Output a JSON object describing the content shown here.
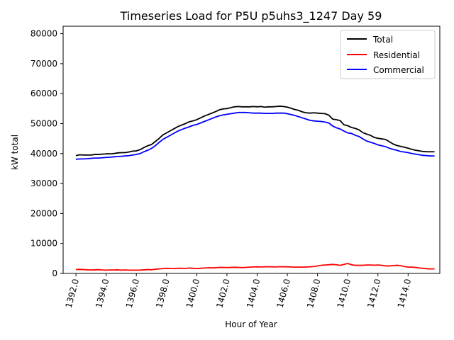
{
  "chart_data": {
    "type": "line",
    "title": "Timeseries Load for P5U p5uhs3_1247  Day 59",
    "xlabel": "Hour of Year",
    "ylabel": "kW total",
    "xlim": [
      1391.15,
      1416.1
    ],
    "ylim": [
      0,
      82500
    ],
    "x_ticks": [
      1392,
      1394,
      1396,
      1398,
      1400,
      1402,
      1404,
      1406,
      1408,
      1410,
      1412,
      1414
    ],
    "x_tick_labels": [
      "1392.0",
      "1394.0",
      "1396.0",
      "1398.0",
      "1400.0",
      "1402.0",
      "1404.0",
      "1406.0",
      "1408.0",
      "1410.0",
      "1412.0",
      "1414.0"
    ],
    "y_ticks": [
      0,
      10000,
      20000,
      30000,
      40000,
      50000,
      60000,
      70000,
      80000
    ],
    "y_tick_labels": [
      "0",
      "10000",
      "20000",
      "30000",
      "40000",
      "50000",
      "60000",
      "70000",
      "80000"
    ],
    "grid": false,
    "legend_position": "top-right",
    "x": [
      1392.0,
      1392.25,
      1392.5,
      1392.75,
      1393.0,
      1393.25,
      1393.5,
      1393.75,
      1394.0,
      1394.25,
      1394.5,
      1394.75,
      1395.0,
      1395.25,
      1395.5,
      1395.75,
      1396.0,
      1396.25,
      1396.5,
      1396.75,
      1397.0,
      1397.25,
      1397.5,
      1397.75,
      1398.0,
      1398.25,
      1398.5,
      1398.75,
      1399.0,
      1399.25,
      1399.5,
      1399.75,
      1400.0,
      1400.25,
      1400.5,
      1400.75,
      1401.0,
      1401.25,
      1401.5,
      1401.75,
      1402.0,
      1402.25,
      1402.5,
      1402.75,
      1403.0,
      1403.25,
      1403.5,
      1403.75,
      1404.0,
      1404.25,
      1404.5,
      1404.75,
      1405.0,
      1405.25,
      1405.5,
      1405.75,
      1406.0,
      1406.25,
      1406.5,
      1406.75,
      1407.0,
      1407.25,
      1407.5,
      1407.75,
      1408.0,
      1408.25,
      1408.5,
      1408.75,
      1409.0,
      1409.25,
      1409.5,
      1409.75,
      1410.0,
      1410.25,
      1410.5,
      1410.75,
      1411.0,
      1411.25,
      1411.5,
      1411.75,
      1412.0,
      1412.25,
      1412.5,
      1412.75,
      1413.0,
      1413.25,
      1413.5,
      1413.75,
      1414.0,
      1414.25,
      1414.5,
      1414.75,
      1415.0,
      1415.25,
      1415.5,
      1415.75
    ],
    "series": [
      {
        "name": "Total",
        "color": "#000000",
        "values": [
          39300,
          39600,
          39500,
          39500,
          39500,
          39700,
          39700,
          39800,
          39900,
          39900,
          40000,
          40200,
          40300,
          40300,
          40500,
          40800,
          40900,
          41300,
          42000,
          42600,
          43000,
          44000,
          45000,
          46200,
          46900,
          47600,
          48300,
          49000,
          49500,
          50000,
          50600,
          50900,
          51300,
          51900,
          52500,
          53000,
          53500,
          54000,
          54600,
          54900,
          55000,
          55300,
          55600,
          55700,
          55600,
          55600,
          55600,
          55700,
          55600,
          55700,
          55500,
          55600,
          55600,
          55700,
          55800,
          55700,
          55500,
          55100,
          54700,
          54400,
          53900,
          53600,
          53500,
          53600,
          53500,
          53400,
          53300,
          52800,
          51500,
          51300,
          51000,
          49600,
          49300,
          48700,
          48400,
          47900,
          47000,
          46500,
          46100,
          45400,
          45100,
          44900,
          44700,
          44000,
          43200,
          42700,
          42400,
          42100,
          41800,
          41400,
          41100,
          40900,
          40700,
          40600,
          40600,
          40600
        ],
        "legend_label": "Total"
      },
      {
        "name": "Residential",
        "color": "#ff0000",
        "values": [
          1300,
          1350,
          1300,
          1200,
          1150,
          1200,
          1250,
          1150,
          1100,
          1150,
          1150,
          1200,
          1100,
          1150,
          1100,
          1100,
          1100,
          1100,
          1200,
          1300,
          1200,
          1400,
          1500,
          1600,
          1700,
          1650,
          1600,
          1700,
          1700,
          1650,
          1800,
          1700,
          1600,
          1700,
          1800,
          1900,
          1850,
          1900,
          2000,
          2000,
          1950,
          2000,
          2050,
          2000,
          1950,
          2000,
          2100,
          2150,
          2200,
          2150,
          2200,
          2250,
          2200,
          2150,
          2250,
          2200,
          2200,
          2150,
          2100,
          2100,
          2100,
          2150,
          2200,
          2300,
          2500,
          2700,
          2800,
          2900,
          3000,
          2900,
          2700,
          3000,
          3300,
          2900,
          2700,
          2700,
          2700,
          2800,
          2800,
          2750,
          2800,
          2700,
          2500,
          2500,
          2600,
          2700,
          2600,
          2300,
          2100,
          2100,
          2000,
          1800,
          1700,
          1550,
          1500,
          1500
        ],
        "legend_label": "Residential"
      },
      {
        "name": "Commercial",
        "color": "#0000ff",
        "values": [
          38100,
          38200,
          38200,
          38300,
          38400,
          38500,
          38500,
          38600,
          38700,
          38800,
          38900,
          39000,
          39100,
          39200,
          39300,
          39500,
          39700,
          40000,
          40600,
          41100,
          41700,
          42600,
          43700,
          44700,
          45400,
          46100,
          46800,
          47500,
          48000,
          48500,
          48900,
          49400,
          49700,
          50200,
          50700,
          51200,
          51700,
          52200,
          52600,
          52900,
          53100,
          53300,
          53500,
          53700,
          53700,
          53700,
          53600,
          53500,
          53500,
          53500,
          53400,
          53400,
          53400,
          53500,
          53500,
          53500,
          53300,
          53000,
          52700,
          52300,
          51900,
          51500,
          51100,
          50900,
          50800,
          50700,
          50500,
          50200,
          49200,
          48600,
          48200,
          47500,
          46900,
          46700,
          46100,
          45700,
          44900,
          44200,
          43800,
          43400,
          42900,
          42600,
          42300,
          41800,
          41400,
          41100,
          40700,
          40500,
          40300,
          40000,
          39800,
          39600,
          39400,
          39300,
          39200,
          39200
        ],
        "legend_label": "Commercial"
      }
    ]
  }
}
